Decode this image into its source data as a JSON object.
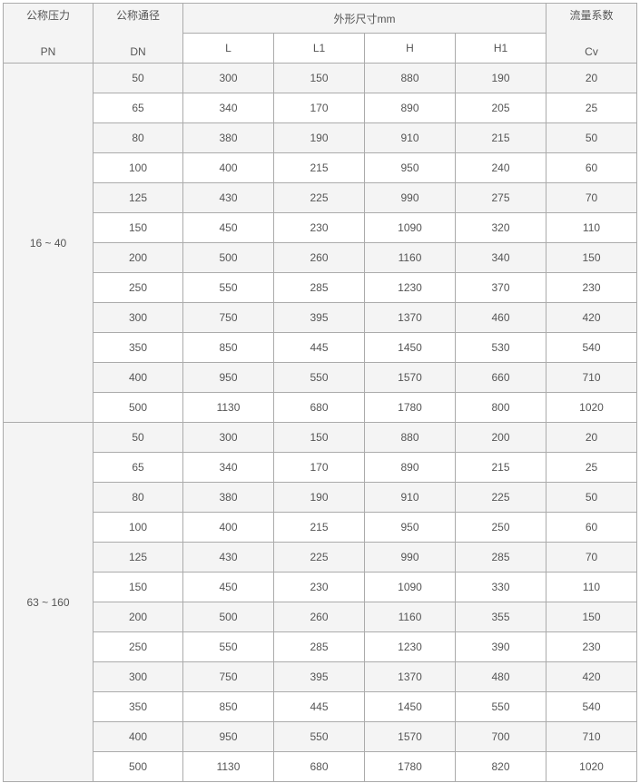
{
  "header": {
    "pressure": "公称压力",
    "pressure_unit": "PN",
    "diameter": "公称通径",
    "diameter_unit": "DN",
    "dims": "外形尺寸mm",
    "cols": [
      "L",
      "L1",
      "H",
      "H1"
    ],
    "flow": "流量系数",
    "flow_unit": "Cv"
  },
  "groups": [
    {
      "pn": "16 ~ 40",
      "rows": [
        [
          "50",
          "300",
          "150",
          "880",
          "190",
          "20"
        ],
        [
          "65",
          "340",
          "170",
          "890",
          "205",
          "25"
        ],
        [
          "80",
          "380",
          "190",
          "910",
          "215",
          "50"
        ],
        [
          "100",
          "400",
          "215",
          "950",
          "240",
          "60"
        ],
        [
          "125",
          "430",
          "225",
          "990",
          "275",
          "70"
        ],
        [
          "150",
          "450",
          "230",
          "1090",
          "320",
          "110"
        ],
        [
          "200",
          "500",
          "260",
          "1160",
          "340",
          "150"
        ],
        [
          "250",
          "550",
          "285",
          "1230",
          "370",
          "230"
        ],
        [
          "300",
          "750",
          "395",
          "1370",
          "460",
          "420"
        ],
        [
          "350",
          "850",
          "445",
          "1450",
          "530",
          "540"
        ],
        [
          "400",
          "950",
          "550",
          "1570",
          "660",
          "710"
        ],
        [
          "500",
          "1130",
          "680",
          "1780",
          "800",
          "1020"
        ]
      ]
    },
    {
      "pn": "63 ~ 160",
      "rows": [
        [
          "50",
          "300",
          "150",
          "880",
          "200",
          "20"
        ],
        [
          "65",
          "340",
          "170",
          "890",
          "215",
          "25"
        ],
        [
          "80",
          "380",
          "190",
          "910",
          "225",
          "50"
        ],
        [
          "100",
          "400",
          "215",
          "950",
          "250",
          "60"
        ],
        [
          "125",
          "430",
          "225",
          "990",
          "285",
          "70"
        ],
        [
          "150",
          "450",
          "230",
          "1090",
          "330",
          "110"
        ],
        [
          "200",
          "500",
          "260",
          "1160",
          "355",
          "150"
        ],
        [
          "250",
          "550",
          "285",
          "1230",
          "390",
          "230"
        ],
        [
          "300",
          "750",
          "395",
          "1370",
          "480",
          "420"
        ],
        [
          "350",
          "850",
          "445",
          "1450",
          "550",
          "540"
        ],
        [
          "400",
          "950",
          "550",
          "1570",
          "700",
          "710"
        ],
        [
          "500",
          "1130",
          "680",
          "1780",
          "820",
          "1020"
        ]
      ]
    }
  ]
}
